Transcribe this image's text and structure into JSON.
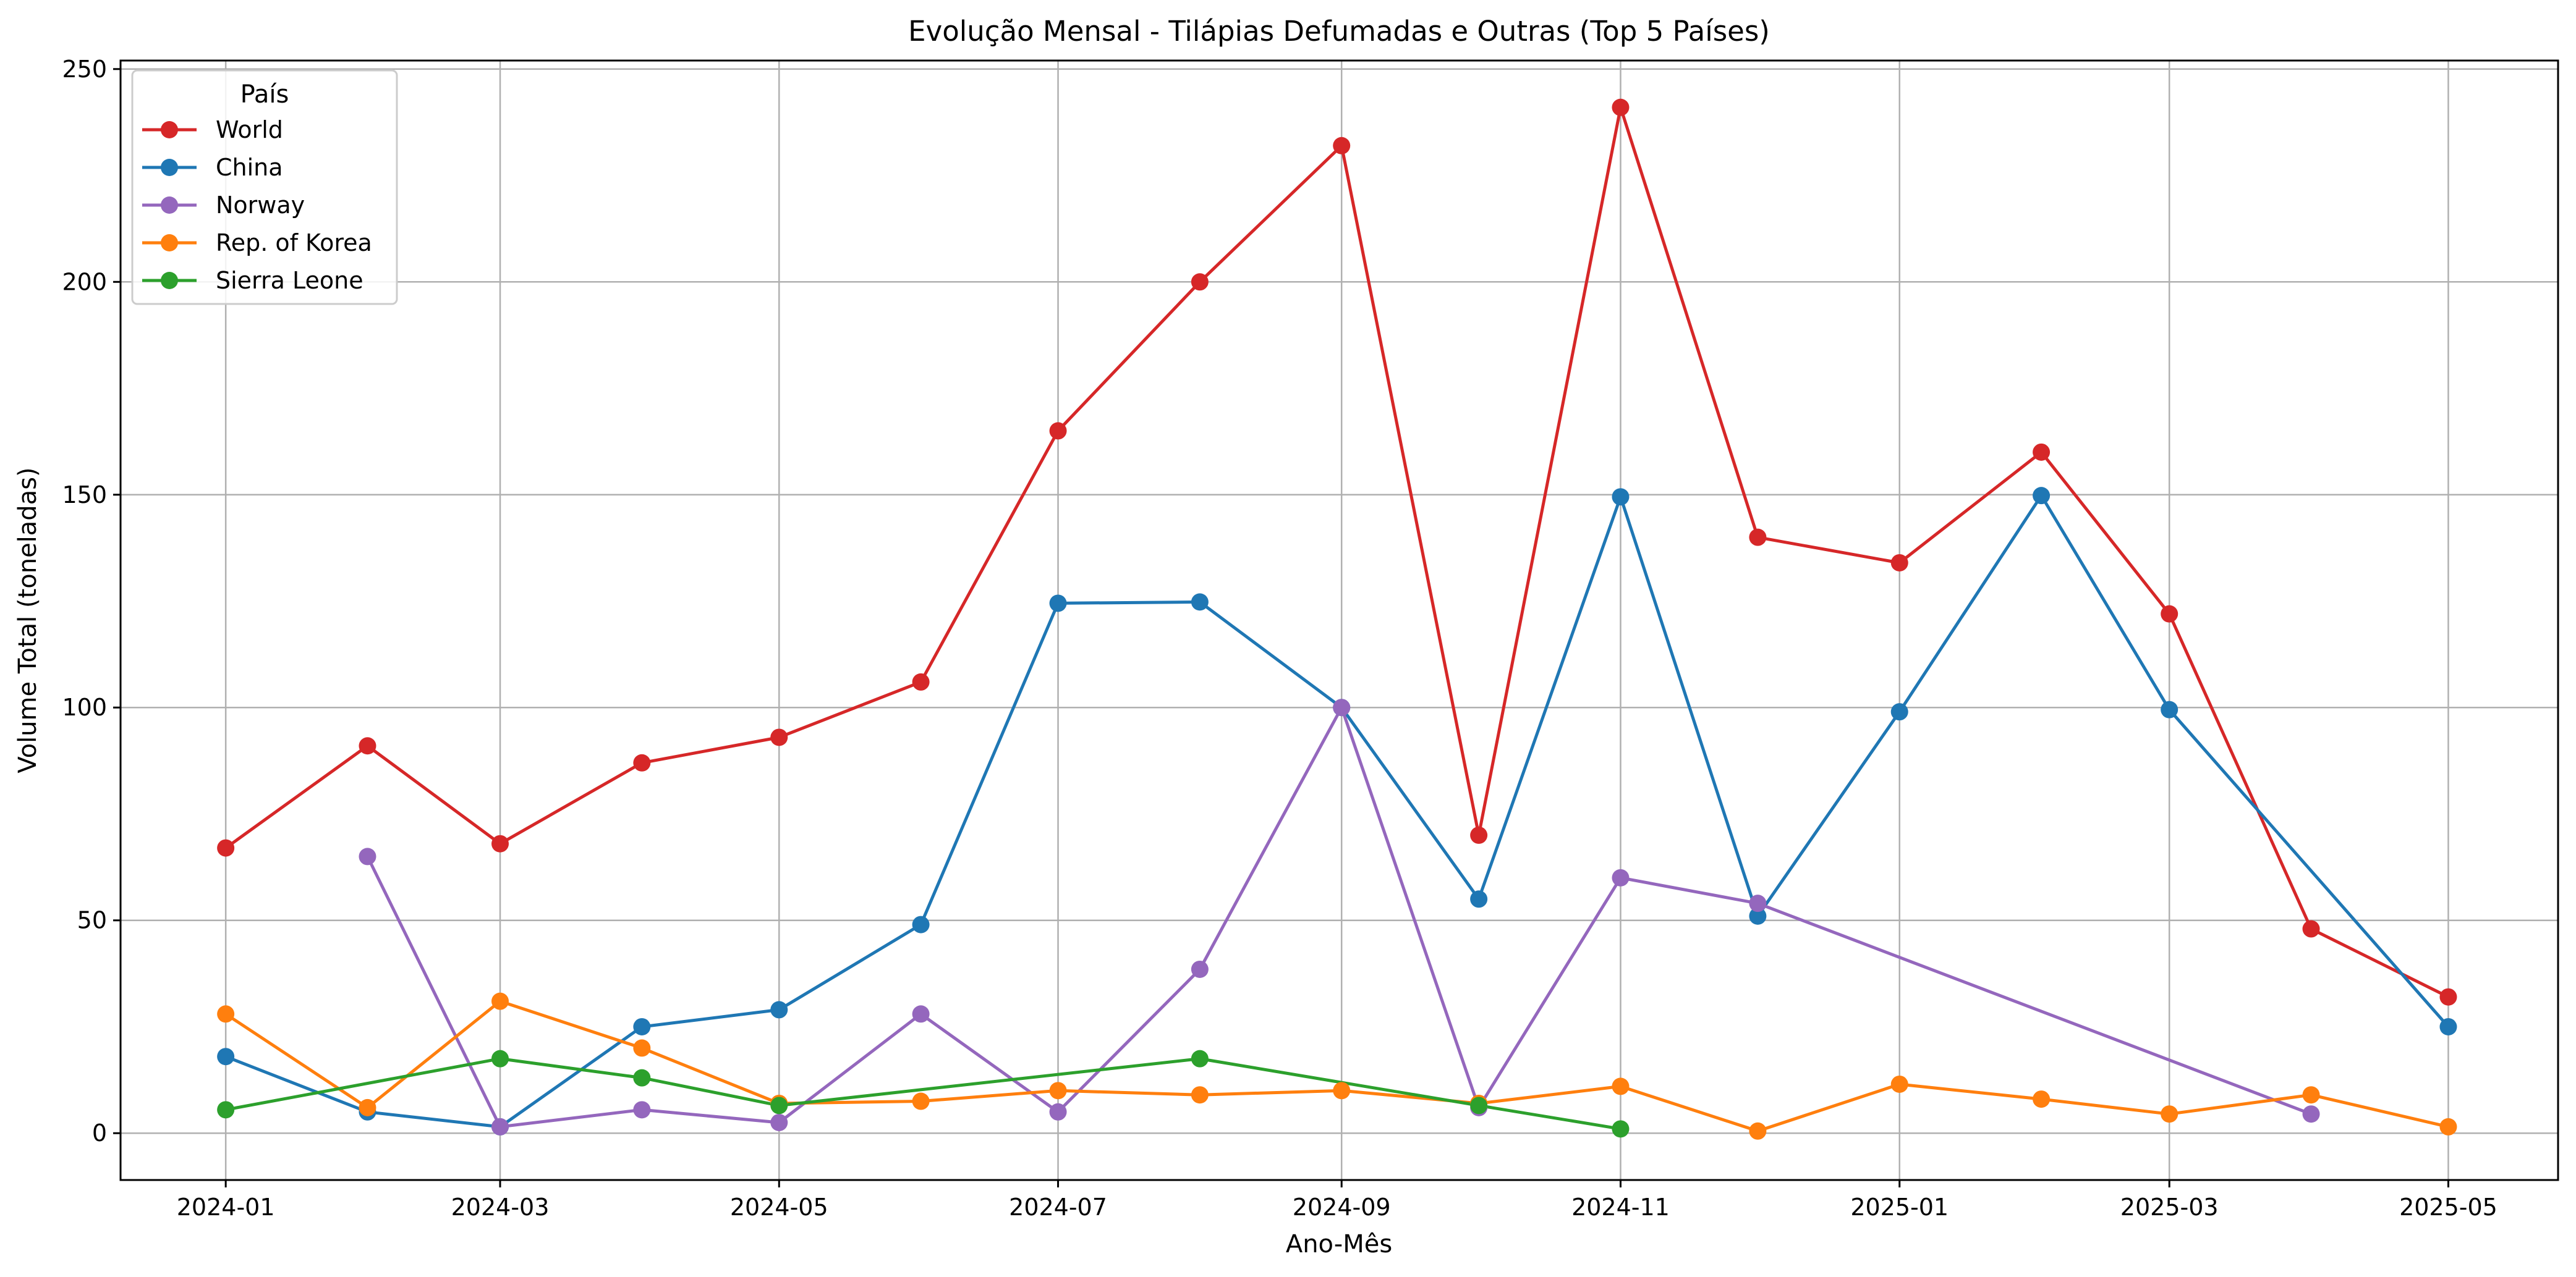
{
  "chart_data": {
    "type": "line",
    "title": "Evolução Mensal - Tilápias Defumadas e Outras (Top 5 Países)",
    "xlabel": "Ano-Mês",
    "ylabel": "Volume Total (toneladas)",
    "x_ticks": [
      "2024-01",
      "2024-03",
      "2024-05",
      "2024-07",
      "2024-09",
      "2024-11",
      "2025-01",
      "2025-03",
      "2025-05"
    ],
    "y_ticks": [
      0,
      50,
      100,
      150,
      200,
      250
    ],
    "xlim": [
      "2023-12-09",
      "2025-05-25"
    ],
    "ylim": [
      -11,
      252
    ],
    "grid": true,
    "legend": {
      "title": "País",
      "placement": "top-left"
    },
    "series": [
      {
        "name": "World",
        "color": "#d62728",
        "points": [
          [
            "2024-01",
            67
          ],
          [
            "2024-02",
            91
          ],
          [
            "2024-03",
            68
          ],
          [
            "2024-04",
            87
          ],
          [
            "2024-05",
            93
          ],
          [
            "2024-06",
            106
          ],
          [
            "2024-07",
            165
          ],
          [
            "2024-08",
            200
          ],
          [
            "2024-09",
            232
          ],
          [
            "2024-10",
            70
          ],
          [
            "2024-11",
            241
          ],
          [
            "2024-12",
            140
          ],
          [
            "2025-01",
            134
          ],
          [
            "2025-02",
            160
          ],
          [
            "2025-03",
            122
          ],
          [
            "2025-04",
            48
          ],
          [
            "2025-05",
            32
          ]
        ]
      },
      {
        "name": "China",
        "color": "#1f77b4",
        "points": [
          [
            "2024-01",
            18
          ],
          [
            "2024-02",
            5
          ],
          [
            "2024-03",
            1.5
          ],
          [
            "2024-04",
            25
          ],
          [
            "2024-05",
            29
          ],
          [
            "2024-06",
            49
          ],
          [
            "2024-07",
            124.5
          ],
          [
            "2024-08",
            124.8
          ],
          [
            "2024-09",
            100
          ],
          [
            "2024-10",
            55
          ],
          [
            "2024-11",
            149.5
          ],
          [
            "2024-12",
            51
          ],
          [
            "2025-01",
            99
          ],
          [
            "2025-02",
            149.8
          ],
          [
            "2025-03",
            99.5
          ],
          [
            "2025-05",
            25
          ]
        ]
      },
      {
        "name": "Norway",
        "color": "#9467bd",
        "points": [
          [
            "2024-02",
            65
          ],
          [
            "2024-03",
            1.5
          ],
          [
            "2024-04",
            5.5
          ],
          [
            "2024-05",
            2.5
          ],
          [
            "2024-06",
            28
          ],
          [
            "2024-07",
            5
          ],
          [
            "2024-08",
            38.5
          ],
          [
            "2024-09",
            100
          ],
          [
            "2024-10",
            6
          ],
          [
            "2024-11",
            60
          ],
          [
            "2024-12",
            54
          ],
          [
            "2025-04",
            4.5
          ]
        ]
      },
      {
        "name": "Rep. of Korea",
        "color": "#ff7f0e",
        "points": [
          [
            "2024-01",
            28
          ],
          [
            "2024-02",
            6
          ],
          [
            "2024-03",
            31
          ],
          [
            "2024-04",
            20
          ],
          [
            "2024-05",
            7
          ],
          [
            "2024-06",
            7.5
          ],
          [
            "2024-07",
            10
          ],
          [
            "2024-08",
            9
          ],
          [
            "2024-09",
            10
          ],
          [
            "2024-10",
            7
          ],
          [
            "2024-11",
            11
          ],
          [
            "2024-12",
            0.5
          ],
          [
            "2025-01",
            11.5
          ],
          [
            "2025-02",
            8
          ],
          [
            "2025-03",
            4.5
          ],
          [
            "2025-04",
            9
          ],
          [
            "2025-05",
            1.5
          ]
        ]
      },
      {
        "name": "Sierra Leone",
        "color": "#2ca02c",
        "points": [
          [
            "2024-01",
            5.5
          ],
          [
            "2024-03",
            17.5
          ],
          [
            "2024-04",
            13
          ],
          [
            "2024-05",
            6.5
          ],
          [
            "2024-08",
            17.5
          ],
          [
            "2024-10",
            6.5
          ],
          [
            "2024-11",
            1
          ]
        ]
      }
    ]
  }
}
